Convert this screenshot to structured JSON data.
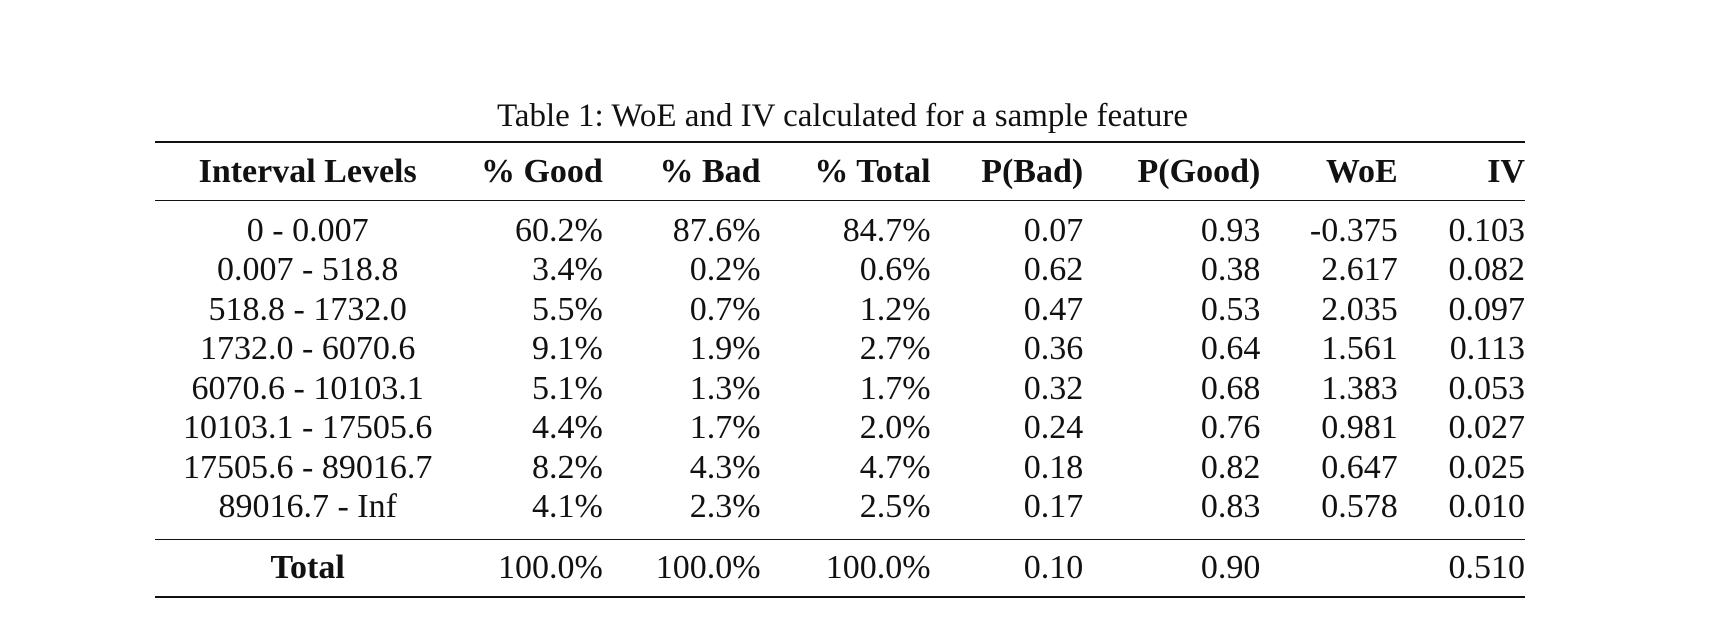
{
  "caption": "Table 1: WoE and IV calculated for a sample feature",
  "table": {
    "headers": [
      "Interval Levels",
      "% Good",
      "% Bad",
      "% Total",
      "P(Bad)",
      "P(Good)",
      "WoE",
      "IV"
    ],
    "rows": [
      [
        "0 - 0.007",
        "60.2%",
        "87.6%",
        "84.7%",
        "0.07",
        "0.93",
        "-0.375",
        "0.103"
      ],
      [
        "0.007 - 518.8",
        "3.4%",
        "0.2%",
        "0.6%",
        "0.62",
        "0.38",
        "2.617",
        "0.082"
      ],
      [
        "518.8 - 1732.0",
        "5.5%",
        "0.7%",
        "1.2%",
        "0.47",
        "0.53",
        "2.035",
        "0.097"
      ],
      [
        "1732.0 - 6070.6",
        "9.1%",
        "1.9%",
        "2.7%",
        "0.36",
        "0.64",
        "1.561",
        "0.113"
      ],
      [
        "6070.6 - 10103.1",
        "5.1%",
        "1.3%",
        "1.7%",
        "0.32",
        "0.68",
        "1.383",
        "0.053"
      ],
      [
        "10103.1 - 17505.6",
        "4.4%",
        "1.7%",
        "2.0%",
        "0.24",
        "0.76",
        "0.981",
        "0.027"
      ],
      [
        "17505.6 - 89016.7",
        "8.2%",
        "4.3%",
        "4.7%",
        "0.18",
        "0.82",
        "0.647",
        "0.025"
      ],
      [
        "89016.7 - Inf",
        "4.1%",
        "2.3%",
        "2.5%",
        "0.17",
        "0.83",
        "0.578",
        "0.010"
      ]
    ],
    "total": [
      "Total",
      "100.0%",
      "100.0%",
      "100.0%",
      "0.10",
      "0.90",
      "",
      "0.510"
    ]
  }
}
